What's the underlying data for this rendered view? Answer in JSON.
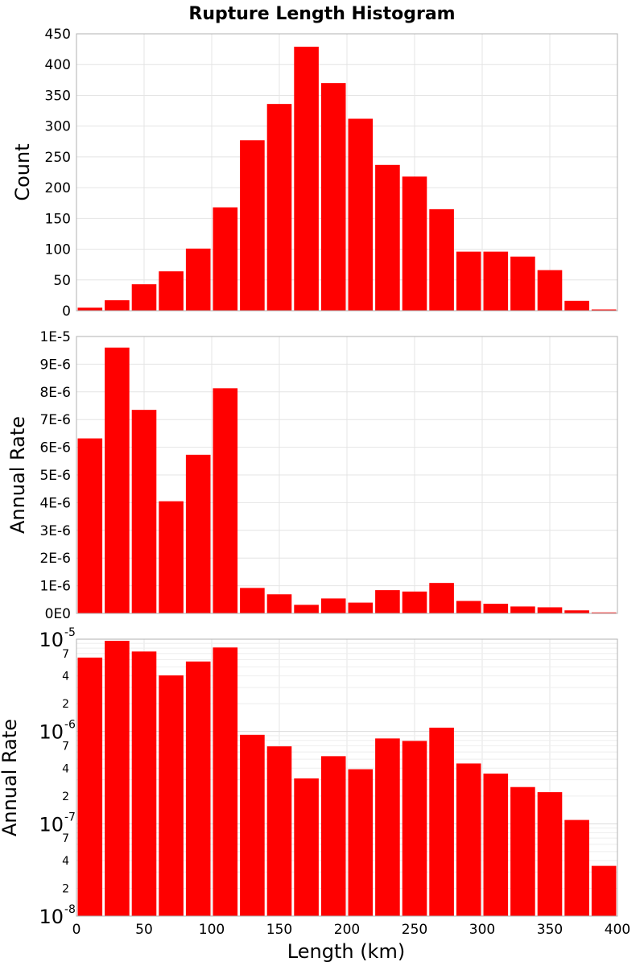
{
  "chart_data": {
    "type": "bar",
    "title": "Rupture Length Histogram",
    "xlabel": "Length (km)",
    "xlim": [
      0,
      400
    ],
    "x_ticks": [
      "0",
      "50",
      "100",
      "150",
      "200",
      "250",
      "300",
      "350",
      "400"
    ],
    "bin_width": 20,
    "bin_centers": [
      10,
      30,
      50,
      70,
      90,
      110,
      130,
      150,
      170,
      190,
      210,
      230,
      250,
      270,
      290,
      310,
      330,
      350,
      370,
      390
    ],
    "bar_color": "#ff0000",
    "grid": true,
    "panels": [
      {
        "ylabel": "Count",
        "scale": "linear",
        "ylim": [
          0,
          450
        ],
        "y_tick_values": [
          0,
          50,
          100,
          150,
          200,
          250,
          300,
          350,
          400,
          450
        ],
        "y_ticks": [
          "0",
          "50",
          "100",
          "150",
          "200",
          "250",
          "300",
          "350",
          "400",
          "450"
        ],
        "values": [
          5,
          17,
          43,
          64,
          101,
          168,
          277,
          336,
          429,
          370,
          312,
          237,
          218,
          165,
          96,
          96,
          88,
          66,
          16,
          2
        ]
      },
      {
        "ylabel": "Annual Rate",
        "scale": "linear",
        "ylim": [
          0,
          1e-05
        ],
        "y_tick_values": [
          0,
          1e-06,
          2e-06,
          3e-06,
          4e-06,
          5e-06,
          6e-06,
          7e-06,
          8e-06,
          9e-06,
          1e-05
        ],
        "y_ticks": [
          "0E0",
          "1E-6",
          "2E-6",
          "3E-6",
          "4E-6",
          "5E-6",
          "6E-6",
          "7E-6",
          "8E-6",
          "9E-6",
          "1E-5"
        ],
        "values": [
          6.32e-06,
          9.6e-06,
          7.35e-06,
          4.05e-06,
          5.73e-06,
          8.13e-06,
          9.2e-07,
          6.9e-07,
          3.1e-07,
          5.4e-07,
          3.9e-07,
          8.4e-07,
          7.9e-07,
          1.1e-06,
          4.5e-07,
          3.5e-07,
          2.5e-07,
          2.2e-07,
          1.1e-07,
          3.5e-08
        ]
      },
      {
        "ylabel": "Annual Rate",
        "scale": "log",
        "ylim": [
          1e-08,
          1e-05
        ],
        "major_ticks": [
          {
            "value": 1e-08,
            "base": "10",
            "exp": "-8"
          },
          {
            "value": 1e-07,
            "base": "10",
            "exp": "-7"
          },
          {
            "value": 1e-06,
            "base": "10",
            "exp": "-6"
          },
          {
            "value": 1e-05,
            "base": "10",
            "exp": "-5"
          }
        ],
        "minor_labels": [
          "2",
          "4",
          "7"
        ],
        "values": [
          6.32e-06,
          9.6e-06,
          7.35e-06,
          4.05e-06,
          5.73e-06,
          8.13e-06,
          9.2e-07,
          6.9e-07,
          3.1e-07,
          5.4e-07,
          3.9e-07,
          8.4e-07,
          7.9e-07,
          1.1e-06,
          4.5e-07,
          3.5e-07,
          2.5e-07,
          2.2e-07,
          1.1e-07,
          3.5e-08
        ]
      }
    ]
  }
}
